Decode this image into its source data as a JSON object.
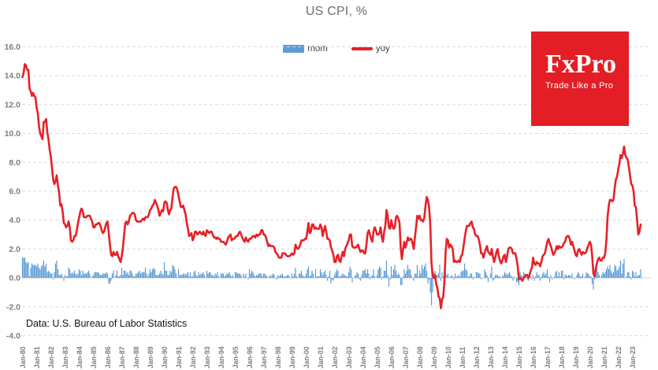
{
  "chart": {
    "title": "US CPI, %",
    "source": "Data: U.S. Bureau of Labor Statistics"
  },
  "logo": {
    "name": "FxPro",
    "tagline": "Trade Like a Pro",
    "background": "#e41e26",
    "text_color": "#ffffff"
  },
  "chart_data": {
    "type": "combo",
    "title": "US CPI, %",
    "frequency": "monthly",
    "x_start": "Jan-1980",
    "x_end": "Aug-2023",
    "ylim": [
      -4,
      16
    ],
    "grid": "horizontal-dashed",
    "legend_position": "top-center",
    "gridline_color": "#dcdcdc",
    "zero_axis_color": "#d0d0d0",
    "axis_label_color": "#7e7e7e",
    "y_tick_labels": [
      "16.0",
      "14.0",
      "12.0",
      "10.0",
      "8.0",
      "6.0",
      "4.0",
      "2.0",
      "0.0",
      "-2.0",
      "-4.0"
    ],
    "x_tick_labels": [
      "Jan-80",
      "Jan-81",
      "Jan-82",
      "Jan-83",
      "Jan-84",
      "Jan-85",
      "Jan-86",
      "Jan-87",
      "Jan-88",
      "Jan-89",
      "Jan-90",
      "Jan-91",
      "Jan-92",
      "Jan-93",
      "Jan-94",
      "Jan-95",
      "Jan-96",
      "Jan-97",
      "Jan-98",
      "Jan-99",
      "Jan-00",
      "Jan-01",
      "Jan-02",
      "Jan-03",
      "Jan-04",
      "Jan-05",
      "Jan-06",
      "Jan-07",
      "Jan-08",
      "Jan-09",
      "Jan-10",
      "Jan-11",
      "Jan-12",
      "Jan-13",
      "Jan-14",
      "Jan-15",
      "Jan-16",
      "Jan-17",
      "Jan-18",
      "Jan-19",
      "Jan-20",
      "Jan-21",
      "Jan-22",
      "Jan-23"
    ],
    "series": [
      {
        "name": "mom",
        "type": "bar",
        "color": "#5b9bd5",
        "values": [
          1.4,
          1.4,
          1.4,
          1.1,
          1.0,
          1.1,
          0.1,
          0.7,
          1.0,
          0.9,
          0.9,
          0.9,
          0.8,
          1.0,
          0.7,
          0.6,
          0.8,
          0.9,
          1.2,
          0.8,
          1.0,
          0.4,
          0.5,
          0.4,
          0.3,
          0.3,
          -0.1,
          0.4,
          1.0,
          1.2,
          0.6,
          0.2,
          0.2,
          0.3,
          0.1,
          -0.2,
          0.2,
          0.1,
          0.1,
          0.7,
          0.6,
          0.3,
          0.4,
          0.3,
          0.5,
          0.3,
          0.2,
          0.3,
          0.6,
          0.5,
          0.2,
          0.5,
          0.3,
          0.3,
          0.3,
          0.4,
          0.5,
          0.3,
          0.0,
          0.1,
          0.2,
          0.4,
          0.4,
          0.4,
          0.4,
          0.3,
          0.2,
          0.2,
          0.3,
          0.3,
          0.3,
          0.4,
          0.3,
          -0.4,
          -0.4,
          -0.2,
          0.3,
          0.5,
          0.0,
          0.2,
          0.5,
          0.1,
          0.1,
          0.2,
          0.7,
          0.2,
          0.5,
          0.5,
          0.3,
          0.4,
          0.2,
          0.5,
          0.5,
          0.3,
          0.1,
          0.1,
          0.3,
          0.3,
          0.4,
          0.5,
          0.3,
          0.4,
          0.4,
          0.4,
          0.7,
          0.3,
          0.1,
          0.3,
          0.6,
          0.4,
          0.6,
          0.7,
          0.6,
          0.2,
          0.2,
          0.2,
          0.3,
          0.5,
          0.3,
          0.2,
          1.1,
          0.5,
          0.5,
          0.2,
          0.2,
          0.5,
          0.4,
          0.9,
          0.8,
          0.6,
          0.3,
          0.0,
          0.6,
          0.2,
          0.2,
          0.2,
          0.3,
          0.3,
          0.2,
          0.3,
          0.4,
          0.1,
          0.4,
          0.1,
          0.1,
          0.4,
          0.5,
          0.2,
          0.1,
          0.4,
          0.2,
          0.3,
          0.3,
          0.4,
          0.2,
          0.0,
          0.5,
          0.3,
          0.4,
          0.4,
          0.2,
          0.2,
          0.1,
          0.3,
          0.2,
          0.4,
          0.1,
          0.0,
          0.3,
          0.3,
          0.3,
          0.1,
          0.2,
          0.3,
          0.3,
          0.4,
          0.2,
          0.1,
          0.2,
          0.0,
          0.4,
          0.4,
          0.3,
          0.3,
          0.3,
          0.2,
          0.0,
          0.3,
          0.1,
          0.3,
          0.0,
          -0.1,
          0.6,
          0.3,
          0.5,
          0.4,
          0.2,
          0.1,
          0.2,
          0.2,
          0.3,
          0.3,
          0.3,
          0.1,
          0.3,
          0.3,
          0.2,
          0.1,
          0.0,
          0.2,
          0.1,
          0.2,
          0.3,
          0.2,
          0.0,
          -0.1,
          0.2,
          0.1,
          0.2,
          0.2,
          0.3,
          0.1,
          0.1,
          0.1,
          0.2,
          0.2,
          0.1,
          0.0,
          0.3,
          0.1,
          0.3,
          0.7,
          0.1,
          0.0,
          0.3,
          0.3,
          0.5,
          0.2,
          0.1,
          0.1,
          0.3,
          0.6,
          0.8,
          0.1,
          0.2,
          0.5,
          0.3,
          0.0,
          0.6,
          0.1,
          0.1,
          0.1,
          0.6,
          0.4,
          0.2,
          0.4,
          0.5,
          0.2,
          -0.2,
          0.1,
          0.5,
          -0.4,
          -0.1,
          -0.2,
          0.2,
          0.4,
          0.6,
          0.5,
          0.1,
          0.1,
          0.2,
          0.3,
          0.2,
          0.2,
          0.1,
          0.1,
          0.4,
          0.8,
          0.6,
          -0.3,
          0.0,
          0.1,
          0.2,
          0.4,
          0.3,
          -0.1,
          -0.2,
          0.2,
          0.5,
          0.5,
          0.6,
          0.3,
          0.6,
          0.3,
          -0.1,
          0.1,
          0.2,
          0.6,
          0.1,
          0.0,
          0.2,
          0.6,
          0.8,
          0.7,
          -0.1,
          0.1,
          0.5,
          0.5,
          1.2,
          0.2,
          -0.6,
          -0.1,
          0.8,
          0.2,
          0.6,
          0.9,
          0.5,
          0.2,
          0.3,
          0.2,
          -0.5,
          -0.5,
          0.1,
          0.6,
          0.3,
          0.5,
          0.9,
          0.6,
          0.6,
          0.2,
          0.0,
          -0.2,
          0.3,
          0.3,
          0.9,
          0.1,
          0.5,
          0.3,
          0.9,
          0.6,
          0.8,
          1.0,
          0.5,
          -0.4,
          -0.1,
          -1.0,
          -1.9,
          -1.0,
          0.4,
          0.5,
          0.2,
          0.2,
          0.3,
          0.9,
          -0.2,
          0.4,
          0.1,
          0.3,
          0.3,
          0.2,
          0.3,
          0.0,
          0.1,
          0.2,
          0.1,
          -0.1,
          0.3,
          0.1,
          0.1,
          0.2,
          0.1,
          0.4,
          0.5,
          0.5,
          1.0,
          0.6,
          0.5,
          0.1,
          0.1,
          0.3,
          0.3,
          -0.1,
          0.1,
          0.0,
          0.4,
          0.4,
          0.3,
          0.3,
          -0.1,
          0.0,
          0.0,
          0.6,
          0.4,
          0.2,
          -0.3,
          0.0,
          0.3,
          0.8,
          -0.2,
          -0.1,
          0.2,
          0.2,
          0.2,
          0.1,
          0.1,
          0.0,
          0.1,
          0.2,
          0.4,
          0.3,
          0.2,
          0.3,
          0.4,
          0.2,
          0.1,
          -0.2,
          0.1,
          0.0,
          -0.3,
          -0.3,
          -0.5,
          0.4,
          0.2,
          0.1,
          0.4,
          0.3,
          0.1,
          -0.1,
          -0.2,
          0.2,
          0.1,
          -0.1,
          0.2,
          -0.2,
          0.1,
          0.4,
          0.2,
          0.2,
          -0.2,
          0.1,
          0.3,
          0.4,
          0.2,
          0.3,
          0.6,
          0.1,
          -0.3,
          0.2,
          -0.1,
          0.0,
          0.1,
          0.4,
          0.5,
          0.1,
          0.4,
          0.1,
          0.5,
          0.5,
          -0.1,
          0.2,
          0.2,
          0.1,
          0.2,
          0.2,
          0.1,
          0.3,
          0.0,
          -0.1,
          0.0,
          0.2,
          0.4,
          0.3,
          0.1,
          0.1,
          0.3,
          0.0,
          0.1,
          0.4,
          0.3,
          0.3,
          0.1,
          0.1,
          -0.4,
          -0.8,
          -0.1,
          0.6,
          0.6,
          0.4,
          0.2,
          0.0,
          0.2,
          0.4,
          0.3,
          0.4,
          0.6,
          0.8,
          0.6,
          0.9,
          0.5,
          0.3,
          0.4,
          0.9,
          0.8,
          0.5,
          0.6,
          0.8,
          1.2,
          0.3,
          1.0,
          1.3,
          0.0,
          0.1,
          0.4,
          0.4,
          0.1,
          -0.1,
          0.5,
          0.4,
          0.1,
          0.4,
          0.1,
          0.2,
          0.2,
          0.6
        ]
      },
      {
        "name": "yoy",
        "type": "line",
        "color": "#e62128",
        "values": [
          13.9,
          14.2,
          14.8,
          14.7,
          14.4,
          14.4,
          13.1,
          12.9,
          12.6,
          12.8,
          12.6,
          12.5,
          11.8,
          11.4,
          10.5,
          10.0,
          9.8,
          9.6,
          10.8,
          10.8,
          11.0,
          10.1,
          9.6,
          8.9,
          8.4,
          7.6,
          6.8,
          6.5,
          6.7,
          7.1,
          6.4,
          5.9,
          5.0,
          5.1,
          4.6,
          3.8,
          3.7,
          3.5,
          3.6,
          3.9,
          3.5,
          2.6,
          2.5,
          2.6,
          2.9,
          2.9,
          3.3,
          3.8,
          4.2,
          4.6,
          4.8,
          4.6,
          4.2,
          4.2,
          4.2,
          4.3,
          4.3,
          4.3,
          4.1,
          3.9,
          3.5,
          3.5,
          3.7,
          3.7,
          3.8,
          3.8,
          3.6,
          3.3,
          3.1,
          3.2,
          3.5,
          3.8,
          3.9,
          3.1,
          2.3,
          1.6,
          1.5,
          1.8,
          1.6,
          1.6,
          1.8,
          1.5,
          1.3,
          1.1,
          1.5,
          2.1,
          3.0,
          3.8,
          3.9,
          3.7,
          3.9,
          4.3,
          4.4,
          4.5,
          4.5,
          4.4,
          4.0,
          3.9,
          3.9,
          3.9,
          3.9,
          4.0,
          4.1,
          4.0,
          4.2,
          4.2,
          4.2,
          4.4,
          4.7,
          4.8,
          5.0,
          5.1,
          5.4,
          5.2,
          5.0,
          4.7,
          4.3,
          4.5,
          4.7,
          4.6,
          5.2,
          5.3,
          5.2,
          4.7,
          4.4,
          4.7,
          4.8,
          5.6,
          6.2,
          6.3,
          6.3,
          6.1,
          5.7,
          5.3,
          4.9,
          4.9,
          5.0,
          4.7,
          4.4,
          3.8,
          3.4,
          2.9,
          3.0,
          3.1,
          2.6,
          2.8,
          3.2,
          3.2,
          3.0,
          3.1,
          3.2,
          3.1,
          3.0,
          3.2,
          3.0,
          2.9,
          3.3,
          3.2,
          3.1,
          3.2,
          3.2,
          3.0,
          2.8,
          2.8,
          2.7,
          2.8,
          2.7,
          2.7,
          2.5,
          2.5,
          2.5,
          2.4,
          2.3,
          2.5,
          2.8,
          2.9,
          3.0,
          2.6,
          2.7,
          2.7,
          2.8,
          2.9,
          2.9,
          3.1,
          3.2,
          3.0,
          2.8,
          2.6,
          2.5,
          2.8,
          2.6,
          2.5,
          2.7,
          2.7,
          2.8,
          2.9,
          2.9,
          2.8,
          3.0,
          2.9,
          3.0,
          3.0,
          3.3,
          3.3,
          3.0,
          3.0,
          2.8,
          2.5,
          2.2,
          2.3,
          2.2,
          2.2,
          2.2,
          2.1,
          1.8,
          1.7,
          1.6,
          1.4,
          1.4,
          1.4,
          1.7,
          1.7,
          1.7,
          1.6,
          1.5,
          1.5,
          1.5,
          1.6,
          1.7,
          1.6,
          1.7,
          2.3,
          2.1,
          2.0,
          2.1,
          2.3,
          2.6,
          2.6,
          2.6,
          2.7,
          2.7,
          3.2,
          3.8,
          3.1,
          3.2,
          3.7,
          3.7,
          3.4,
          3.5,
          3.4,
          3.4,
          3.4,
          3.7,
          3.5,
          2.9,
          3.3,
          3.6,
          3.2,
          2.7,
          2.7,
          2.6,
          2.1,
          1.9,
          1.6,
          1.1,
          1.1,
          1.5,
          1.6,
          1.2,
          1.1,
          1.5,
          1.8,
          1.5,
          2.0,
          2.2,
          2.4,
          2.6,
          3.0,
          3.0,
          2.2,
          2.1,
          2.1,
          2.1,
          2.2,
          2.3,
          2.0,
          1.8,
          1.9,
          1.9,
          1.7,
          1.7,
          2.3,
          3.1,
          3.3,
          3.0,
          2.7,
          2.5,
          3.2,
          3.5,
          3.3,
          3.0,
          3.0,
          3.1,
          3.5,
          2.8,
          2.5,
          3.2,
          3.6,
          4.7,
          4.3,
          3.5,
          3.4,
          4.0,
          3.6,
          3.4,
          3.5,
          4.2,
          4.3,
          4.1,
          3.8,
          2.1,
          1.3,
          2.0,
          2.5,
          2.1,
          2.4,
          2.8,
          2.6,
          2.7,
          2.7,
          2.4,
          2.0,
          2.8,
          3.5,
          4.3,
          4.1,
          4.3,
          4.0,
          4.0,
          3.9,
          4.2,
          5.0,
          5.6,
          5.4,
          4.9,
          3.7,
          1.1,
          0.1,
          0.0,
          0.2,
          -0.4,
          -0.7,
          -1.3,
          -1.4,
          -2.1,
          -1.5,
          -1.3,
          -0.2,
          1.8,
          2.7,
          2.6,
          2.1,
          2.3,
          2.2,
          2.0,
          1.1,
          1.2,
          1.1,
          1.1,
          1.2,
          1.1,
          1.5,
          1.6,
          2.1,
          2.7,
          3.2,
          3.6,
          3.6,
          3.6,
          3.8,
          3.9,
          3.5,
          3.4,
          3.0,
          2.9,
          2.9,
          2.7,
          2.3,
          1.7,
          1.7,
          1.4,
          1.7,
          2.0,
          2.2,
          1.8,
          1.7,
          1.6,
          2.0,
          1.5,
          1.1,
          1.4,
          1.8,
          2.0,
          1.5,
          1.2,
          1.0,
          1.2,
          1.5,
          1.6,
          1.1,
          1.5,
          2.0,
          2.1,
          2.1,
          2.0,
          1.7,
          1.7,
          1.7,
          1.3,
          0.8,
          -0.1,
          0.0,
          -0.1,
          -0.2,
          0.0,
          0.1,
          0.2,
          0.2,
          0.0,
          0.2,
          0.5,
          0.7,
          1.4,
          1.0,
          0.9,
          1.1,
          1.0,
          1.0,
          0.8,
          1.1,
          1.5,
          1.6,
          1.7,
          2.1,
          2.5,
          2.7,
          2.4,
          2.2,
          1.9,
          1.6,
          1.7,
          1.9,
          2.2,
          2.0,
          2.2,
          2.1,
          2.1,
          2.2,
          2.4,
          2.5,
          2.8,
          2.9,
          2.9,
          2.7,
          2.3,
          2.5,
          2.2,
          1.9,
          1.6,
          1.5,
          1.9,
          2.0,
          1.8,
          1.6,
          1.8,
          1.7,
          1.7,
          1.8,
          2.1,
          2.3,
          2.5,
          2.3,
          1.5,
          0.3,
          0.1,
          0.6,
          1.0,
          1.3,
          1.4,
          1.2,
          1.2,
          1.4,
          1.4,
          1.7,
          2.6,
          4.2,
          5.0,
          5.4,
          5.4,
          5.3,
          5.4,
          6.2,
          6.8,
          7.0,
          7.5,
          7.9,
          8.5,
          8.3,
          8.6,
          9.1,
          8.5,
          8.3,
          8.2,
          7.7,
          7.1,
          6.5,
          6.4,
          6.0,
          5.0,
          4.9,
          4.0,
          3.0,
          3.2,
          3.7
        ]
      }
    ]
  }
}
